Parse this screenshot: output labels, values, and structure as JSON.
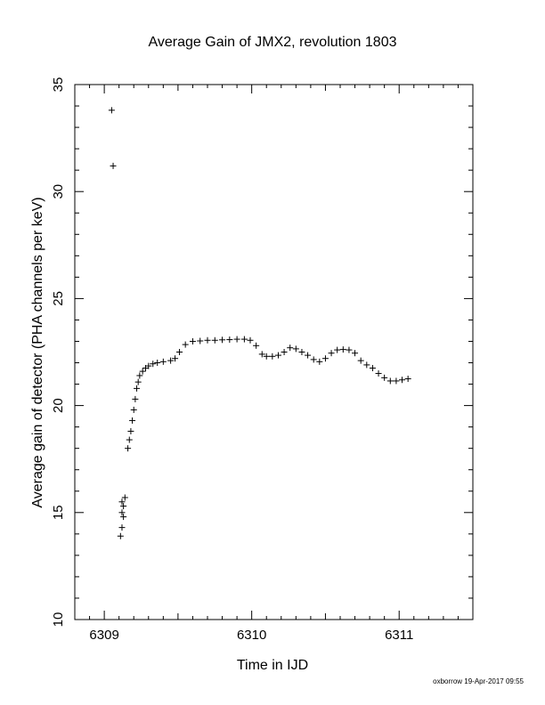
{
  "chart_data": {
    "type": "scatter",
    "title": "Average Gain of JMX2, revolution 1803",
    "xlabel": "Time in IJD",
    "ylabel": "Average gain of detector (PHA channels per keV)",
    "xlim": [
      6308.8,
      6311.5
    ],
    "ylim": [
      10,
      35
    ],
    "x_ticks": [
      6309,
      6310,
      6311
    ],
    "x_tick_labels": [
      "6309",
      "6310",
      "6311"
    ],
    "y_ticks": [
      10,
      15,
      20,
      25,
      30,
      35
    ],
    "y_tick_labels": [
      "10",
      "15",
      "20",
      "25",
      "30",
      "35"
    ],
    "marker": "plus",
    "grid": false,
    "series": [
      {
        "points": [
          [
            6309.05,
            33.8
          ],
          [
            6309.06,
            31.2
          ],
          [
            6309.11,
            13.9
          ],
          [
            6309.12,
            14.3
          ],
          [
            6309.13,
            14.8
          ],
          [
            6309.12,
            15.0
          ],
          [
            6309.13,
            15.3
          ],
          [
            6309.12,
            15.5
          ],
          [
            6309.14,
            15.7
          ],
          [
            6309.16,
            18.0
          ],
          [
            6309.17,
            18.4
          ],
          [
            6309.18,
            18.8
          ],
          [
            6309.19,
            19.3
          ],
          [
            6309.2,
            19.8
          ],
          [
            6309.21,
            20.3
          ],
          [
            6309.22,
            20.8
          ],
          [
            6309.23,
            21.1
          ],
          [
            6309.24,
            21.4
          ],
          [
            6309.26,
            21.6
          ],
          [
            6309.28,
            21.75
          ],
          [
            6309.3,
            21.85
          ],
          [
            6309.33,
            21.95
          ],
          [
            6309.36,
            22.0
          ],
          [
            6309.4,
            22.05
          ],
          [
            6309.45,
            22.1
          ],
          [
            6309.48,
            22.2
          ],
          [
            6309.51,
            22.5
          ],
          [
            6309.55,
            22.85
          ],
          [
            6309.6,
            23.0
          ],
          [
            6309.65,
            23.02
          ],
          [
            6309.7,
            23.05
          ],
          [
            6309.75,
            23.05
          ],
          [
            6309.8,
            23.07
          ],
          [
            6309.85,
            23.08
          ],
          [
            6309.9,
            23.1
          ],
          [
            6309.95,
            23.1
          ],
          [
            6309.99,
            23.05
          ],
          [
            6310.03,
            22.8
          ],
          [
            6310.07,
            22.4
          ],
          [
            6310.1,
            22.3
          ],
          [
            6310.14,
            22.3
          ],
          [
            6310.18,
            22.35
          ],
          [
            6310.22,
            22.5
          ],
          [
            6310.26,
            22.7
          ],
          [
            6310.3,
            22.65
          ],
          [
            6310.34,
            22.5
          ],
          [
            6310.38,
            22.35
          ],
          [
            6310.42,
            22.15
          ],
          [
            6310.46,
            22.05
          ],
          [
            6310.5,
            22.2
          ],
          [
            6310.54,
            22.45
          ],
          [
            6310.58,
            22.6
          ],
          [
            6310.62,
            22.62
          ],
          [
            6310.66,
            22.6
          ],
          [
            6310.7,
            22.45
          ],
          [
            6310.74,
            22.1
          ],
          [
            6310.78,
            21.9
          ],
          [
            6310.82,
            21.75
          ],
          [
            6310.86,
            21.5
          ],
          [
            6310.9,
            21.3
          ],
          [
            6310.94,
            21.15
          ],
          [
            6310.98,
            21.15
          ],
          [
            6311.02,
            21.2
          ],
          [
            6311.06,
            21.25
          ]
        ]
      }
    ]
  },
  "footer": "oxborrow 19-Apr-2017 09:55"
}
